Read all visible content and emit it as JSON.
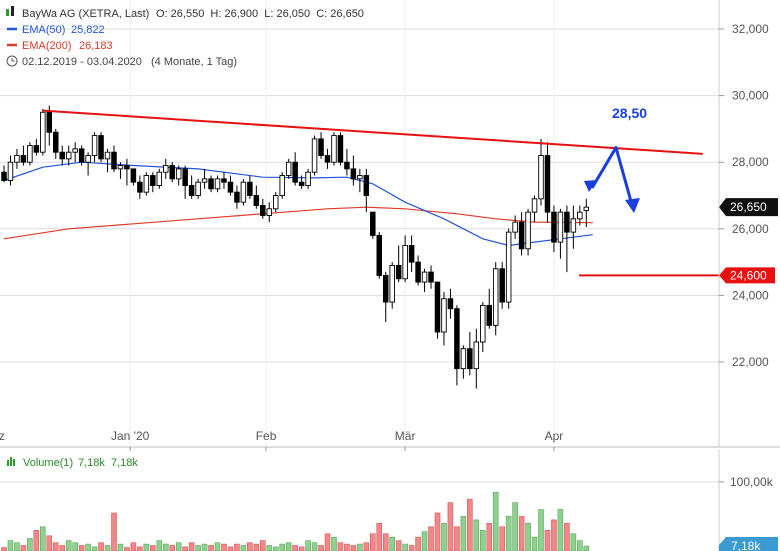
{
  "legend": {
    "instrument": "BayWa AG (XETRA, Last)",
    "ohlc": "O: 26,550  H: 26,900  L: 26,050  C: 26,650",
    "ema50_label": "EMA(50)",
    "ema50_value": "25,822",
    "ema200_label": "EMA(200)",
    "ema200_value": "26,183",
    "period": "02.12.2019 - 03.04.2020",
    "period_note": "(4 Monate, 1 Tag)"
  },
  "volume_legend": {
    "label": "Volume(1)",
    "value1": "7,18k",
    "value2": "7,18k"
  },
  "colors": {
    "up": "#ffffff",
    "down": "#000000",
    "ema50": "#2255dd",
    "ema200": "#e03a2a",
    "trend": "#e81010",
    "forecast": "#1a3fe0",
    "vol_up": "#8fcf8f",
    "vol_down": "#f0888a",
    "grid": "#dddddd"
  },
  "chart_data": {
    "type": "candlestick",
    "y_axis": {
      "min": 20500,
      "max": 32500,
      "ticks": [
        "32,000",
        "30,000",
        "28,000",
        "26,000",
        "24,000",
        "22,000"
      ],
      "tick_values": [
        32000,
        30000,
        28000,
        26000,
        24000,
        22000
      ]
    },
    "x_axis": {
      "labels": [
        "Dez",
        "Jan '20",
        "Feb",
        "Mär",
        "Apr"
      ],
      "label_index": [
        -1.5,
        19.5,
        40.5,
        62,
        85
      ]
    },
    "price_tag": "26,650",
    "support_tag": "24,600",
    "support_value": 24600,
    "forecast_label": "28,50",
    "forecast_value": 28500,
    "trendline": [
      {
        "i": 6,
        "v": 29550
      },
      {
        "i": 108,
        "v": 28250
      }
    ],
    "candles": [
      [
        27700,
        27900,
        27400,
        27450
      ],
      [
        27450,
        28200,
        27300,
        28000
      ],
      [
        28000,
        28400,
        27800,
        28200
      ],
      [
        28200,
        28500,
        27900,
        28000
      ],
      [
        28000,
        28600,
        27900,
        28500
      ],
      [
        28500,
        28700,
        28200,
        28300
      ],
      [
        28300,
        29600,
        28200,
        29500
      ],
      [
        29500,
        29700,
        28500,
        28900
      ],
      [
        28900,
        29000,
        28100,
        28300
      ],
      [
        28300,
        28500,
        27900,
        28100
      ],
      [
        28100,
        28500,
        27900,
        28300
      ],
      [
        28300,
        28600,
        28000,
        28400
      ],
      [
        28400,
        28500,
        27900,
        28000
      ],
      [
        28000,
        28300,
        27600,
        28200
      ],
      [
        28200,
        28900,
        28000,
        28800
      ],
      [
        28800,
        28900,
        28000,
        28100
      ],
      [
        28100,
        28400,
        27700,
        28300
      ],
      [
        28300,
        28500,
        27700,
        27800
      ],
      [
        27800,
        28000,
        27500,
        27900
      ],
      [
        27900,
        28100,
        27300,
        27800
      ],
      [
        27800,
        27800,
        27300,
        27400
      ],
      [
        27400,
        27600,
        26900,
        27100
      ],
      [
        27100,
        27700,
        27000,
        27600
      ],
      [
        27600,
        27700,
        27100,
        27300
      ],
      [
        27300,
        27800,
        27200,
        27700
      ],
      [
        27700,
        28100,
        27500,
        27900
      ],
      [
        27900,
        28000,
        27400,
        27500
      ],
      [
        27500,
        27900,
        27300,
        27800
      ],
      [
        27800,
        27900,
        26900,
        27300
      ],
      [
        27300,
        27600,
        26900,
        27000
      ],
      [
        27000,
        27500,
        26900,
        27400
      ],
      [
        27400,
        27800,
        27200,
        27500
      ],
      [
        27500,
        27600,
        27100,
        27200
      ],
      [
        27200,
        27600,
        27100,
        27500
      ],
      [
        27500,
        27700,
        27200,
        27400
      ],
      [
        27400,
        27600,
        27000,
        27100
      ],
      [
        27100,
        27300,
        26600,
        26800
      ],
      [
        26800,
        27500,
        26700,
        27400
      ],
      [
        27400,
        27600,
        26900,
        27000
      ],
      [
        27000,
        27300,
        26600,
        26700
      ],
      [
        26700,
        26900,
        26300,
        26400
      ],
      [
        26400,
        26800,
        26200,
        26600
      ],
      [
        26600,
        27100,
        26500,
        27000
      ],
      [
        27000,
        27700,
        26900,
        27600
      ],
      [
        27600,
        28100,
        27500,
        28000
      ],
      [
        28000,
        28300,
        27300,
        27400
      ],
      [
        27400,
        27600,
        27200,
        27300
      ],
      [
        27300,
        27800,
        27200,
        27700
      ],
      [
        27700,
        28800,
        27600,
        28700
      ],
      [
        28700,
        28900,
        28100,
        28200
      ],
      [
        28200,
        28400,
        27800,
        28000
      ],
      [
        28000,
        28900,
        27900,
        28800
      ],
      [
        28800,
        28900,
        27900,
        28000
      ],
      [
        28000,
        28400,
        27600,
        27800
      ],
      [
        27800,
        28200,
        27300,
        27500
      ],
      [
        27500,
        27800,
        27100,
        27600
      ],
      [
        27600,
        27800,
        26500,
        27000
      ],
      [
        26500,
        26500,
        25700,
        25800
      ],
      [
        25800,
        25900,
        24500,
        24600
      ],
      [
        24600,
        24700,
        23200,
        23800
      ],
      [
        23800,
        25000,
        23600,
        24900
      ],
      [
        24900,
        25500,
        24400,
        24500
      ],
      [
        24500,
        25800,
        24400,
        25500
      ],
      [
        25500,
        25800,
        24700,
        25000
      ],
      [
        25000,
        25200,
        24300,
        24400
      ],
      [
        24400,
        24800,
        24100,
        24700
      ],
      [
        24700,
        24900,
        24200,
        24400
      ],
      [
        24400,
        24400,
        22700,
        22900
      ],
      [
        22900,
        24100,
        22500,
        23900
      ],
      [
        23900,
        24200,
        23300,
        23600
      ],
      [
        23600,
        23700,
        21300,
        21800
      ],
      [
        21800,
        22500,
        21500,
        22400
      ],
      [
        22400,
        22900,
        21600,
        21800
      ],
      [
        21800,
        23000,
        21200,
        22600
      ],
      [
        22600,
        23800,
        22300,
        23700
      ],
      [
        23700,
        24200,
        23000,
        23100
      ],
      [
        23100,
        25000,
        22800,
        24800
      ],
      [
        24800,
        25000,
        23600,
        23800
      ],
      [
        23800,
        26000,
        23600,
        25900
      ],
      [
        25900,
        26400,
        25700,
        26200
      ],
      [
        26200,
        26500,
        25200,
        25400
      ],
      [
        25400,
        26600,
        25200,
        26500
      ],
      [
        26500,
        27000,
        26200,
        26900
      ],
      [
        26900,
        28700,
        26700,
        28200
      ],
      [
        28200,
        28600,
        26200,
        26500
      ],
      [
        26500,
        26700,
        25300,
        25600
      ],
      [
        25600,
        26600,
        25100,
        26500
      ],
      [
        26500,
        26700,
        24700,
        25900
      ],
      [
        25900,
        26700,
        25400,
        26300
      ],
      [
        26300,
        26700,
        26100,
        26500
      ],
      [
        26550,
        26900,
        26050,
        26650
      ]
    ],
    "ema50": [
      {
        "i": 0,
        "v": 27450
      },
      {
        "i": 6,
        "v": 27850
      },
      {
        "i": 12,
        "v": 28000
      },
      {
        "i": 20,
        "v": 27900
      },
      {
        "i": 30,
        "v": 27800
      },
      {
        "i": 40,
        "v": 27550
      },
      {
        "i": 48,
        "v": 27530
      },
      {
        "i": 53,
        "v": 27550
      },
      {
        "i": 57,
        "v": 27350
      },
      {
        "i": 62,
        "v": 26800
      },
      {
        "i": 68,
        "v": 26300
      },
      {
        "i": 74,
        "v": 25700
      },
      {
        "i": 78,
        "v": 25500
      },
      {
        "i": 82,
        "v": 25600
      },
      {
        "i": 86,
        "v": 25700
      },
      {
        "i": 91,
        "v": 25822
      }
    ],
    "ema200": [
      {
        "i": 0,
        "v": 25700
      },
      {
        "i": 10,
        "v": 26000
      },
      {
        "i": 20,
        "v": 26150
      },
      {
        "i": 30,
        "v": 26300
      },
      {
        "i": 40,
        "v": 26450
      },
      {
        "i": 50,
        "v": 26600
      },
      {
        "i": 56,
        "v": 26650
      },
      {
        "i": 62,
        "v": 26600
      },
      {
        "i": 70,
        "v": 26450
      },
      {
        "i": 76,
        "v": 26300
      },
      {
        "i": 82,
        "v": 26200
      },
      {
        "i": 91,
        "v": 26183
      }
    ],
    "volume": {
      "axis_label": "100,00k",
      "axis_value": 100000,
      "max": 120000,
      "values": [
        5,
        15,
        12,
        8,
        18,
        30,
        35,
        22,
        12,
        8,
        15,
        12,
        8,
        10,
        6,
        12,
        8,
        55,
        10,
        5,
        12,
        6,
        10,
        8,
        15,
        10,
        8,
        12,
        6,
        12,
        8,
        10,
        8,
        12,
        10,
        6,
        10,
        8,
        12,
        10,
        15,
        8,
        6,
        10,
        12,
        8,
        6,
        15,
        12,
        8,
        25,
        20,
        12,
        10,
        8,
        10,
        12,
        25,
        40,
        25,
        20,
        15,
        10,
        8,
        20,
        28,
        35,
        55,
        40,
        70,
        35,
        50,
        75,
        45,
        30,
        40,
        85,
        35,
        50,
        70,
        50,
        40,
        20,
        60,
        30,
        45,
        60,
        40,
        25,
        15,
        7.18
      ]
    }
  }
}
